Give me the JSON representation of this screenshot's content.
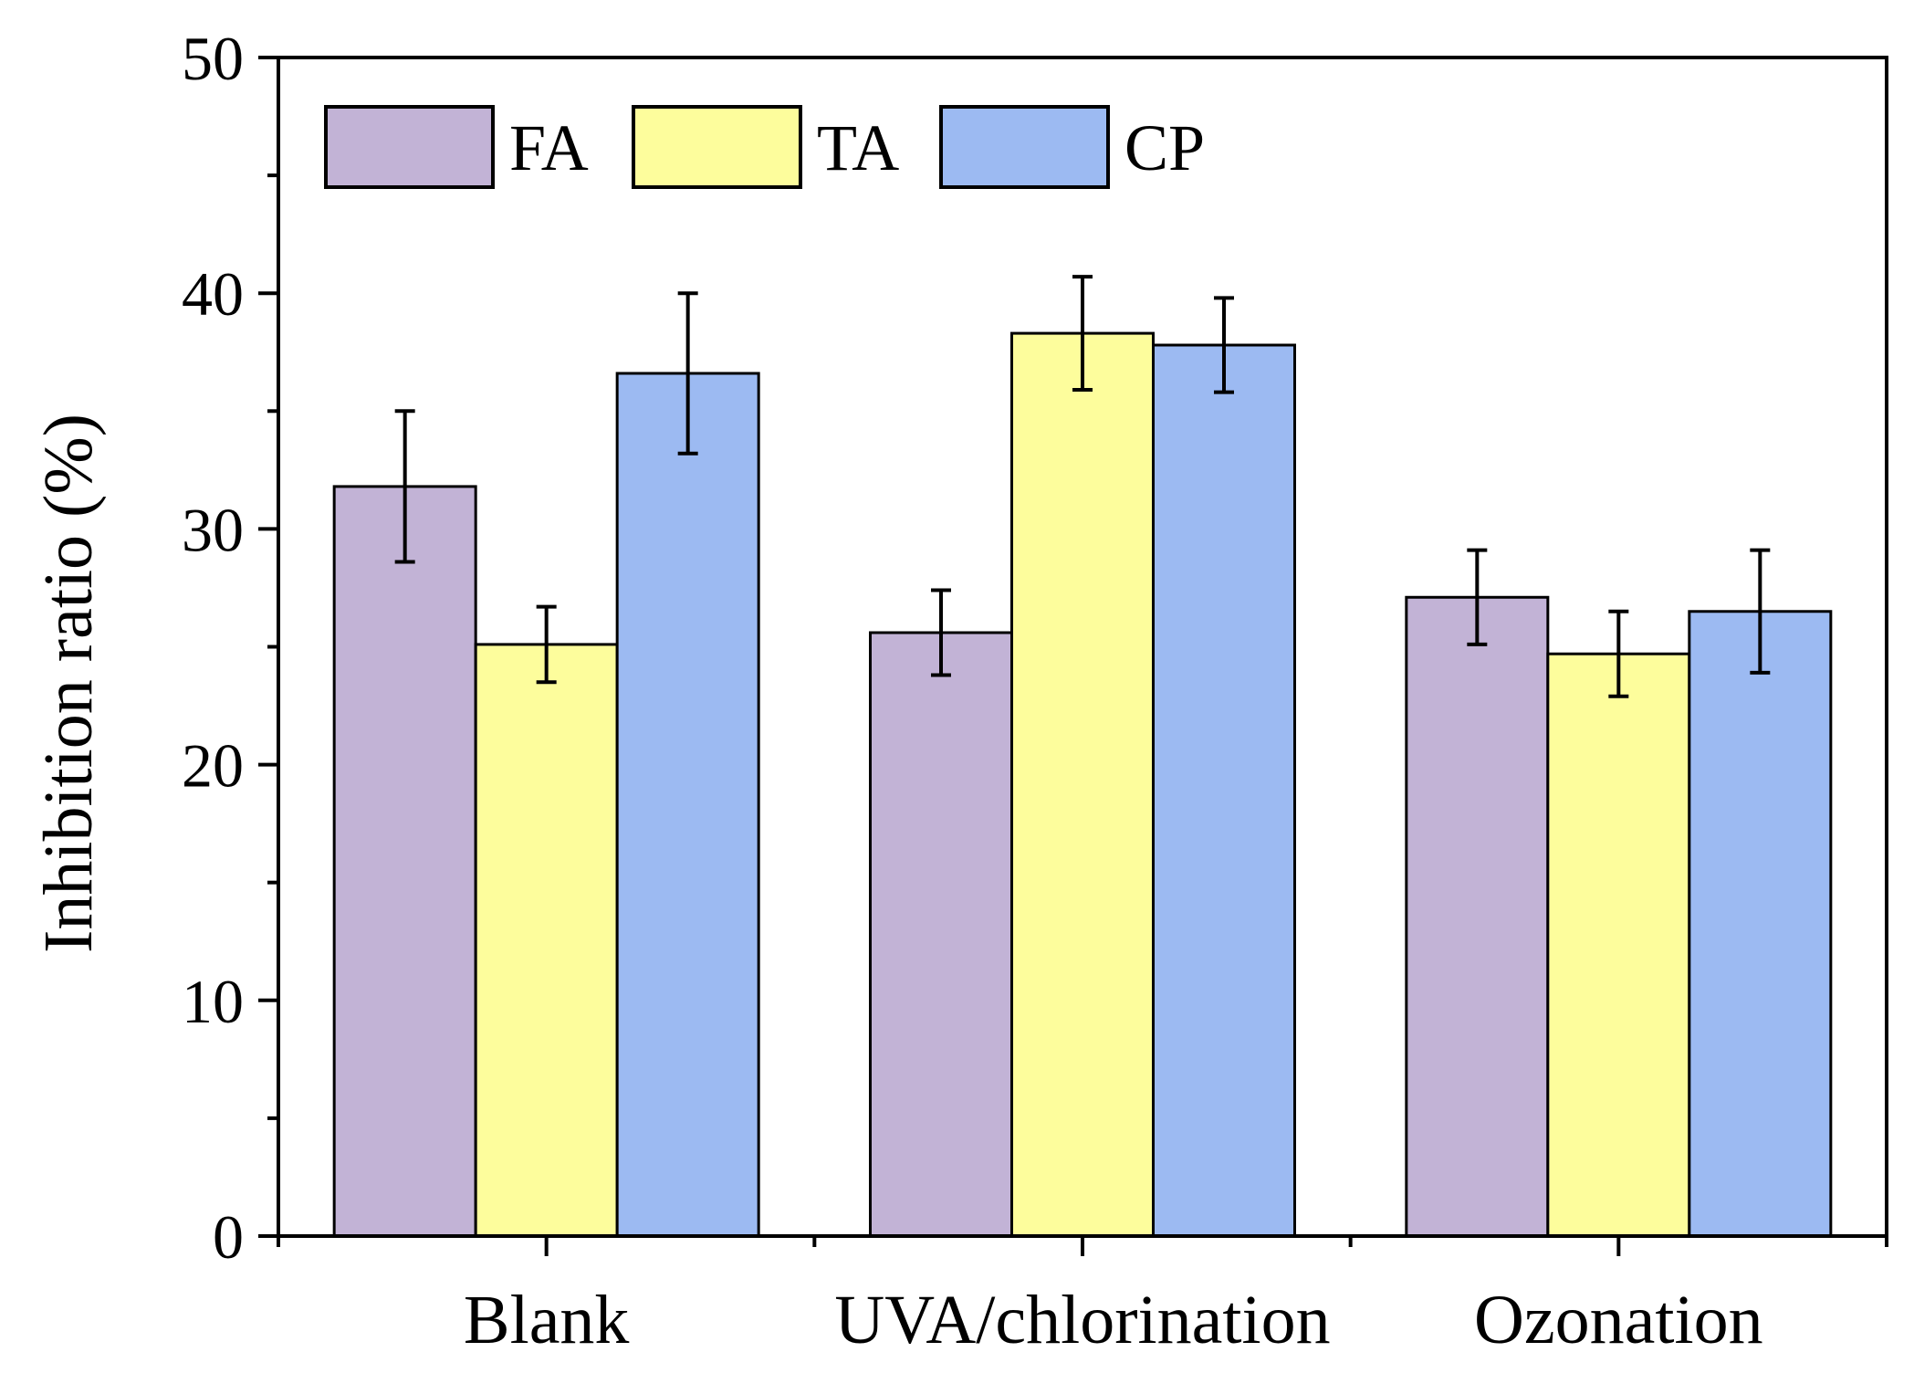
{
  "chart_data": {
    "type": "bar",
    "title": "",
    "xlabel": "",
    "ylabel": "Inhibition ratio (%)",
    "categories": [
      "Blank",
      "UVA/chlorination",
      "Ozonation"
    ],
    "ylim": [
      0,
      50
    ],
    "yticks": [
      0,
      10,
      20,
      30,
      40,
      50
    ],
    "ytick_labels": [
      "0",
      "10",
      "20",
      "30",
      "40",
      "50"
    ],
    "grid": false,
    "legend_position": "top-left",
    "series": [
      {
        "name": "FA",
        "color": "#c2b3d6",
        "values": [
          31.8,
          25.6,
          27.1
        ],
        "errors": [
          3.2,
          1.8,
          2.0
        ]
      },
      {
        "name": "TA",
        "color": "#fdfd9c",
        "values": [
          25.1,
          38.3,
          24.7
        ],
        "errors": [
          1.6,
          2.4,
          1.8
        ]
      },
      {
        "name": "CP",
        "color": "#9cbaf2",
        "values": [
          36.6,
          37.8,
          26.5
        ],
        "errors": [
          3.4,
          2.0,
          2.6
        ]
      }
    ]
  }
}
